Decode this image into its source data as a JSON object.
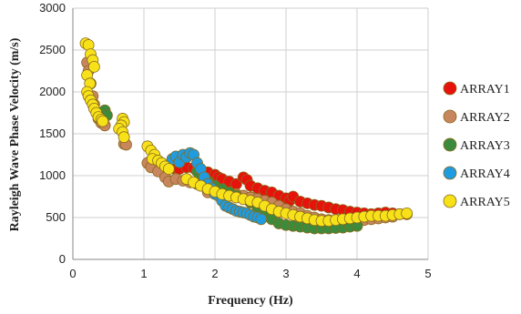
{
  "chart_data": {
    "type": "scatter",
    "title": "",
    "xlabel": "Frequency (Hz)",
    "ylabel": "Rayleigh Wave Phase Velocity (m/s)",
    "xlim": [
      0,
      5
    ],
    "ylim": [
      0,
      3000
    ],
    "x_ticks": [
      "0",
      "1",
      "2",
      "3",
      "4",
      "5"
    ],
    "y_ticks": [
      "0",
      "500",
      "1000",
      "1500",
      "2000",
      "2500",
      "3000"
    ],
    "grid": true,
    "legend_position": "right",
    "series": [
      {
        "name": "ARRAY1",
        "color": "#e8120c",
        "points": [
          [
            1.1,
            1180
          ],
          [
            1.2,
            1120
          ],
          [
            1.3,
            1100
          ],
          [
            1.4,
            1090
          ],
          [
            1.5,
            1080
          ],
          [
            1.6,
            1100
          ],
          [
            1.7,
            1090
          ],
          [
            1.8,
            1070
          ],
          [
            1.9,
            1040
          ],
          [
            2.0,
            1010
          ],
          [
            2.05,
            980
          ],
          [
            2.1,
            960
          ],
          [
            2.2,
            930
          ],
          [
            2.3,
            900
          ],
          [
            2.4,
            980
          ],
          [
            2.45,
            950
          ],
          [
            2.5,
            880
          ],
          [
            2.6,
            850
          ],
          [
            2.7,
            820
          ],
          [
            2.8,
            800
          ],
          [
            2.9,
            760
          ],
          [
            3.0,
            730
          ],
          [
            3.05,
            700
          ],
          [
            3.1,
            750
          ],
          [
            3.2,
            690
          ],
          [
            3.3,
            670
          ],
          [
            3.4,
            650
          ],
          [
            3.5,
            640
          ],
          [
            3.6,
            620
          ],
          [
            3.7,
            600
          ],
          [
            3.8,
            590
          ],
          [
            3.9,
            570
          ],
          [
            4.0,
            560
          ],
          [
            4.1,
            550
          ],
          [
            4.2,
            540
          ],
          [
            4.3,
            550
          ],
          [
            4.4,
            560
          ],
          [
            4.5,
            550
          ],
          [
            4.6,
            540
          ],
          [
            4.7,
            540
          ]
        ]
      },
      {
        "name": "ARRAY2",
        "color": "#c8865f",
        "points": [
          [
            0.2,
            2350
          ],
          [
            0.22,
            2250
          ],
          [
            0.25,
            2100
          ],
          [
            0.28,
            1950
          ],
          [
            0.3,
            1850
          ],
          [
            0.33,
            1750
          ],
          [
            0.36,
            1680
          ],
          [
            0.4,
            1630
          ],
          [
            0.45,
            1600
          ],
          [
            0.72,
            1380
          ],
          [
            0.75,
            1370
          ],
          [
            1.05,
            1150
          ],
          [
            1.1,
            1100
          ],
          [
            1.2,
            1050
          ],
          [
            1.3,
            980
          ],
          [
            1.35,
            930
          ],
          [
            1.45,
            960
          ],
          [
            1.55,
            940
          ],
          [
            1.65,
            920
          ],
          [
            1.75,
            900
          ],
          [
            1.85,
            880
          ],
          [
            1.9,
            800
          ],
          [
            2.0,
            850
          ],
          [
            2.1,
            820
          ],
          [
            2.2,
            800
          ],
          [
            2.3,
            780
          ],
          [
            2.4,
            760
          ],
          [
            2.5,
            740
          ],
          [
            2.6,
            720
          ],
          [
            2.7,
            700
          ],
          [
            2.8,
            680
          ],
          [
            2.9,
            640
          ],
          [
            3.0,
            600
          ],
          [
            3.1,
            570
          ],
          [
            3.2,
            550
          ],
          [
            3.3,
            520
          ],
          [
            3.4,
            500
          ],
          [
            3.5,
            480
          ],
          [
            3.6,
            470
          ],
          [
            3.7,
            460
          ],
          [
            3.8,
            450
          ],
          [
            3.9,
            450
          ],
          [
            4.0,
            460
          ],
          [
            4.1,
            470
          ],
          [
            4.2,
            480
          ],
          [
            4.3,
            490
          ],
          [
            4.4,
            500
          ],
          [
            4.5,
            510
          ]
        ]
      },
      {
        "name": "ARRAY3",
        "color": "#3c8a3c",
        "points": [
          [
            0.45,
            1780
          ],
          [
            0.48,
            1720
          ],
          [
            1.75,
            1050
          ],
          [
            1.8,
            1000
          ],
          [
            1.85,
            960
          ],
          [
            1.9,
            930
          ],
          [
            2.0,
            880
          ],
          [
            2.1,
            840
          ],
          [
            2.2,
            800
          ],
          [
            2.3,
            760
          ],
          [
            2.4,
            720
          ],
          [
            2.5,
            680
          ],
          [
            2.6,
            620
          ],
          [
            2.7,
            560
          ],
          [
            2.8,
            480
          ],
          [
            2.9,
            430
          ],
          [
            3.0,
            410
          ],
          [
            3.1,
            400
          ],
          [
            3.2,
            390
          ],
          [
            3.3,
            380
          ],
          [
            3.4,
            370
          ],
          [
            3.5,
            370
          ],
          [
            3.6,
            370
          ],
          [
            3.7,
            375
          ],
          [
            3.8,
            380
          ],
          [
            3.9,
            390
          ],
          [
            4.0,
            400
          ]
        ]
      },
      {
        "name": "ARRAY4",
        "color": "#1f9be0",
        "points": [
          [
            1.4,
            1200
          ],
          [
            1.45,
            1230
          ],
          [
            1.5,
            1160
          ],
          [
            1.55,
            1250
          ],
          [
            1.6,
            1220
          ],
          [
            1.65,
            1270
          ],
          [
            1.7,
            1250
          ],
          [
            1.75,
            1150
          ],
          [
            1.8,
            1080
          ],
          [
            1.85,
            980
          ],
          [
            1.9,
            900
          ],
          [
            1.95,
            850
          ],
          [
            2.0,
            780
          ],
          [
            2.05,
            760
          ],
          [
            2.1,
            700
          ],
          [
            2.15,
            640
          ],
          [
            2.2,
            620
          ],
          [
            2.25,
            600
          ],
          [
            2.3,
            580
          ],
          [
            2.35,
            570
          ],
          [
            2.4,
            560
          ],
          [
            2.45,
            550
          ],
          [
            2.5,
            530
          ],
          [
            2.55,
            510
          ],
          [
            2.6,
            500
          ],
          [
            2.65,
            480
          ]
        ]
      },
      {
        "name": "ARRAY5",
        "color": "#f7e21a",
        "points": [
          [
            0.18,
            2580
          ],
          [
            0.22,
            2560
          ],
          [
            0.25,
            2450
          ],
          [
            0.28,
            2380
          ],
          [
            0.3,
            2300
          ],
          [
            0.2,
            2200
          ],
          [
            0.24,
            2100
          ],
          [
            0.2,
            2000
          ],
          [
            0.22,
            1950
          ],
          [
            0.25,
            1900
          ],
          [
            0.28,
            1850
          ],
          [
            0.3,
            1800
          ],
          [
            0.33,
            1750
          ],
          [
            0.36,
            1700
          ],
          [
            0.4,
            1670
          ],
          [
            0.42,
            1650
          ],
          [
            0.7,
            1680
          ],
          [
            0.72,
            1640
          ],
          [
            0.68,
            1600
          ],
          [
            0.65,
            1560
          ],
          [
            0.7,
            1520
          ],
          [
            0.72,
            1460
          ],
          [
            1.05,
            1350
          ],
          [
            1.1,
            1300
          ],
          [
            1.15,
            1250
          ],
          [
            1.12,
            1200
          ],
          [
            1.2,
            1180
          ],
          [
            1.25,
            1150
          ],
          [
            1.3,
            1110
          ],
          [
            1.35,
            1080
          ],
          [
            1.6,
            960
          ],
          [
            1.7,
            920
          ],
          [
            1.8,
            880
          ],
          [
            1.9,
            840
          ],
          [
            2.0,
            810
          ],
          [
            2.1,
            780
          ],
          [
            2.2,
            760
          ],
          [
            2.3,
            740
          ],
          [
            2.4,
            720
          ],
          [
            2.5,
            700
          ],
          [
            2.6,
            680
          ],
          [
            2.7,
            640
          ],
          [
            2.8,
            600
          ],
          [
            2.9,
            570
          ],
          [
            3.0,
            550
          ],
          [
            3.1,
            530
          ],
          [
            3.2,
            510
          ],
          [
            3.3,
            490
          ],
          [
            3.4,
            470
          ],
          [
            3.5,
            460
          ],
          [
            3.6,
            460
          ],
          [
            3.7,
            470
          ],
          [
            3.8,
            480
          ],
          [
            3.9,
            490
          ],
          [
            4.0,
            500
          ],
          [
            4.1,
            510
          ],
          [
            4.2,
            520
          ],
          [
            4.3,
            520
          ],
          [
            4.4,
            520
          ],
          [
            4.5,
            530
          ],
          [
            4.6,
            540
          ],
          [
            4.7,
            550
          ]
        ]
      }
    ]
  }
}
